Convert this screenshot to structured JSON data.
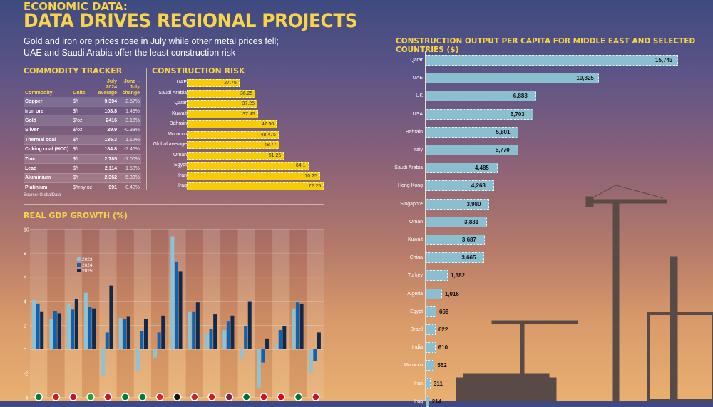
{
  "header": {
    "kicker": "ECONOMIC DATA:",
    "title": "DATA DRIVES REGIONAL PROJECTS",
    "subtitle": "Gold and iron ore prices rose in July while other metal prices fell; UAE and Saudi Arabia offer the least construction risk"
  },
  "commodity": {
    "title": "COMMODITY TRACKER",
    "headers": [
      "Commodity",
      "Units",
      "July 2024 average",
      "June – July change"
    ],
    "rows": [
      [
        "Copper",
        "$/t",
        "9,394",
        "-2.57%"
      ],
      [
        "Iron ore",
        "$/t",
        "108.8",
        "1.49%"
      ],
      [
        "Gold",
        "$/oz",
        "2416",
        "3.16%"
      ],
      [
        "Silver",
        "$/oz",
        "29.9",
        "-0.33%"
      ],
      [
        "Thermal coal",
        "$/t",
        "135.3",
        "1.12%"
      ],
      [
        "Coking coal (HCC)",
        "$/t",
        "184.8",
        "-7.46%"
      ],
      [
        "Zinc",
        "$/t",
        "2,785",
        "-1.00%"
      ],
      [
        "Lead",
        "$/t",
        "2,114",
        "-1.58%"
      ],
      [
        "Aluminium",
        "$/t",
        "2,362",
        "-5.33%"
      ],
      [
        "Platinium",
        "$/troy oz",
        "991",
        "-0.40%"
      ]
    ],
    "source": "Source: GlobalData"
  },
  "chart_data": [
    {
      "type": "bar",
      "orientation": "horizontal",
      "title": "CONSTRUCTION RISK",
      "bar_color": "#f6cb08",
      "categories": [
        "UAE",
        "Saudi Arabia",
        "Qatar",
        "Kuwait",
        "Bahrain",
        "Morocco",
        "Global average",
        "Oman",
        "Egypt",
        "Iran",
        "Iraq"
      ],
      "values": [
        27.75,
        36.25,
        37.25,
        37.45,
        47.5,
        48.475,
        48.77,
        51.25,
        64.1,
        70.25,
        72.25
      ],
      "labels": [
        "27.75",
        "36.25",
        "37.25",
        "37.45",
        "47.50",
        "48.475",
        "48.77",
        "51.25",
        "64.1",
        "70.25",
        "72.25"
      ]
    },
    {
      "type": "bar",
      "orientation": "vertical",
      "title": "REAL GDP GROWTH (%)",
      "ylim": [
        -4,
        10
      ],
      "yticks": [
        -4,
        -2,
        0,
        2,
        4,
        6,
        8,
        10
      ],
      "grid": true,
      "legend": "top-left",
      "categories_icons": [
        "algeria-flag-icon",
        "bahrain-flag-icon",
        "egypt-flag-icon",
        "iran-flag-icon",
        "iraq-flag-icon",
        "jordan-flag-icon",
        "kuwait-flag-icon",
        "lebanon-flag-icon",
        "libya-flag-icon",
        "morocco-flag-icon",
        "oman-flag-icon",
        "qatar-flag-icon",
        "saudi-arabia-flag-icon",
        "syria-flag-icon",
        "tunisia-flag-icon",
        "uae-flag-icon",
        "yemen-flag-icon"
      ],
      "series": [
        {
          "name": "2023",
          "color": "#8fc3d4",
          "values": [
            4.1,
            2.5,
            3.8,
            4.7,
            -2.2,
            2.6,
            -1.8,
            -0.7,
            9.4,
            3.1,
            1.3,
            1.6,
            -0.8,
            -3.2,
            0.4,
            3.4,
            -2.0
          ]
        },
        {
          "name": "2024",
          "color": "#0a63b5",
          "values": [
            3.8,
            3.2,
            3.3,
            3.5,
            1.4,
            2.5,
            1.5,
            1.4,
            7.3,
            3.1,
            1.7,
            2.3,
            1.9,
            -1.1,
            1.6,
            3.9,
            -1.0
          ]
        },
        {
          "name": "2025f",
          "color": "#13294a",
          "values": [
            3.1,
            3.0,
            4.2,
            3.4,
            5.3,
            2.7,
            2.5,
            2.8,
            6.5,
            3.9,
            2.9,
            2.8,
            4.0,
            0.9,
            1.9,
            3.8,
            1.4
          ]
        }
      ]
    },
    {
      "type": "bar",
      "orientation": "horizontal",
      "title": "CONSTRUCTION OUTPUT PER CAPITA FOR MIDDLE EAST AND SELECTED COUNTRIES ($)",
      "bar_color": "#8bbfd0",
      "categories": [
        "Qatar",
        "UAE",
        "UK",
        "USA",
        "Bahrain",
        "Italy",
        "Saudi Arabia",
        "Hong Kong",
        "Singapore",
        "Oman",
        "Kuwait",
        "China",
        "Turkey",
        "Algeria",
        "Egypt",
        "Brazil",
        "India",
        "Morocco",
        "Iran",
        "Iraq"
      ],
      "values": [
        15743,
        10825,
        6883,
        6703,
        5801,
        5770,
        4485,
        4263,
        3980,
        3831,
        3687,
        3665,
        1382,
        1016,
        669,
        622,
        610,
        552,
        311,
        214
      ],
      "labels": [
        "15,743",
        "10,825",
        "6,883",
        "6,703",
        "5,801",
        "5,770",
        "4,485",
        "4,263",
        "3,980",
        "3,831",
        "3,687",
        "3,665",
        "1,382",
        "1,016",
        "669",
        "622",
        "610",
        "552",
        "311",
        "214"
      ]
    }
  ]
}
